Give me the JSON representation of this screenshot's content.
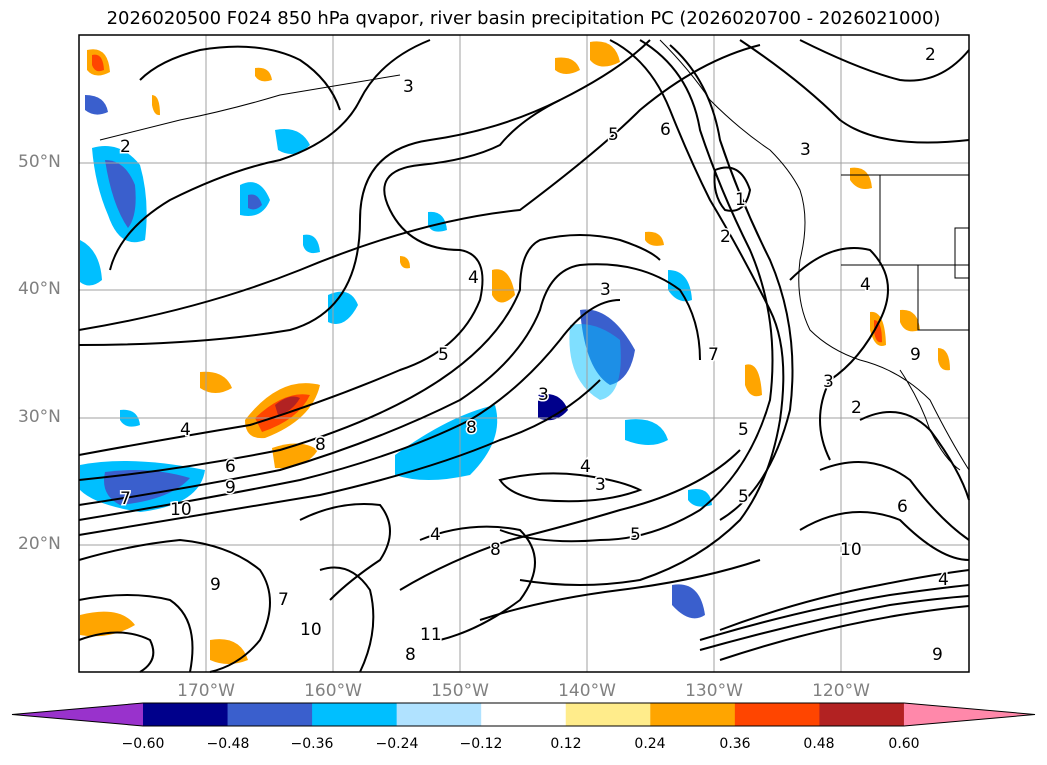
{
  "title": "2026020500 F024 850 hPa qvapor, river basin precipitation PC (2026020700 - 2026021000)",
  "latitude_labels": [
    "50°N",
    "40°N",
    "30°N",
    "20°N"
  ],
  "longitude_labels": [
    "170°W",
    "160°W",
    "150°W",
    "140°W",
    "130°W",
    "120°W"
  ],
  "colorbar": {
    "ticks": [
      "−0.60",
      "−0.48",
      "−0.36",
      "−0.24",
      "−0.12",
      "0.12",
      "0.24",
      "0.36",
      "0.48",
      "0.60"
    ],
    "colors": [
      "#9932cc",
      "#00008b",
      "#3a5fcd",
      "#00bfff",
      "#b0e2ff",
      "#ffffff",
      "#ffec8b",
      "#ffa500",
      "#ff4500",
      "#b22222",
      "#ff88aa"
    ]
  },
  "contour_labels": [
    "2",
    "3",
    "2",
    "5",
    "6",
    "3",
    "1",
    "2",
    "4",
    "4",
    "3",
    "5",
    "8",
    "6",
    "9",
    "10",
    "7",
    "4",
    "3",
    "8",
    "7",
    "5",
    "9",
    "10",
    "8",
    "4",
    "3",
    "2",
    "5",
    "6",
    "9",
    "8",
    "10",
    "11",
    "9",
    "7",
    "3",
    "4",
    "5",
    "4"
  ],
  "colors": {
    "positive_dark": "#b22222",
    "positive_mid": "#ff4500",
    "positive_light": "#ffa500",
    "positive_pale": "#ffec8b",
    "negative_dark": "#00008b",
    "negative_mid": "#3a5fcd",
    "negative_light": "#00bfff",
    "negative_pale": "#b0e2ff"
  }
}
